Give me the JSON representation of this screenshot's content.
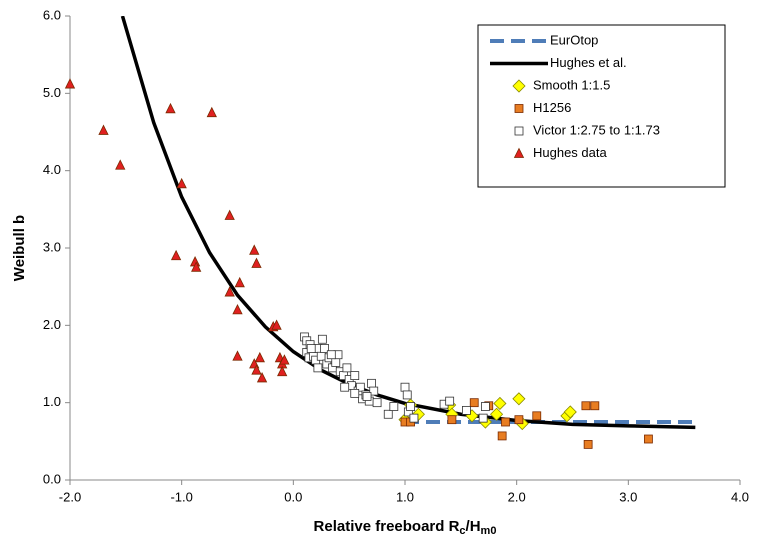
{
  "chart_data": {
    "type": "scatter",
    "x_label_parts": [
      "Relative freeboard R",
      "c",
      "/H",
      "m0"
    ],
    "y_label": "Weibull b",
    "xlim": [
      -2,
      4
    ],
    "ylim": [
      0,
      6
    ],
    "xticks": [
      {
        "value": -2,
        "label": "-2.0"
      },
      {
        "value": -1,
        "label": "-1.0"
      },
      {
        "value": 0,
        "label": "0.0"
      },
      {
        "value": 1,
        "label": "1.0"
      },
      {
        "value": 2,
        "label": "2.0"
      },
      {
        "value": 3,
        "label": "3.0"
      },
      {
        "value": 4,
        "label": "4.0"
      }
    ],
    "yticks": [
      {
        "value": 0,
        "label": "0.0"
      },
      {
        "value": 1,
        "label": "1.0"
      },
      {
        "value": 2,
        "label": "2.0"
      },
      {
        "value": 3,
        "label": "3.0"
      },
      {
        "value": 4,
        "label": "4.0"
      },
      {
        "value": 5,
        "label": "5.0"
      },
      {
        "value": 6,
        "label": "6.0"
      }
    ],
    "grid": false,
    "legend": "upper right",
    "series": [
      {
        "name": "EurOtop",
        "kind": "line",
        "dashed": true,
        "color": "#4f7db8",
        "x": [
          1.0,
          3.6
        ],
        "values": [
          0.75,
          0.75
        ]
      },
      {
        "name": "Hughes et al.",
        "kind": "line",
        "dashed": false,
        "color": "#000000",
        "x": [
          -1.53,
          -1.25,
          -1.0,
          -0.75,
          -0.5,
          -0.25,
          0,
          0.25,
          0.5,
          0.75,
          1.0,
          1.5,
          2.0,
          2.5,
          3.0,
          3.6
        ],
        "values": [
          6.0,
          4.62,
          3.66,
          2.94,
          2.39,
          1.98,
          1.66,
          1.42,
          1.24,
          1.1,
          0.99,
          0.85,
          0.77,
          0.72,
          0.7,
          0.68
        ]
      },
      {
        "name": "Smooth 1:1.5",
        "kind": "marker",
        "marker": "diamond",
        "color": "#ffff00",
        "x": [
          1.0,
          1.05,
          1.12,
          1.4,
          1.42,
          1.6,
          1.72,
          1.82,
          1.85,
          2.02,
          2.05,
          2.45,
          2.48
        ],
        "values": [
          0.78,
          0.97,
          0.85,
          0.97,
          0.85,
          0.83,
          0.75,
          0.85,
          0.99,
          1.05,
          0.73,
          0.83,
          0.88
        ]
      },
      {
        "name": "H1256",
        "kind": "marker",
        "marker": "square",
        "color": "#e87d22",
        "x": [
          1.0,
          1.05,
          1.42,
          1.62,
          1.75,
          1.87,
          1.9,
          2.02,
          2.18,
          2.62,
          2.64,
          2.7,
          3.18
        ],
        "values": [
          0.75,
          0.75,
          0.78,
          1.0,
          0.96,
          0.57,
          0.75,
          0.78,
          0.83,
          0.96,
          0.46,
          0.96,
          0.53
        ]
      },
      {
        "name": "Victor 1:2.75  to 1:1.73",
        "kind": "marker",
        "marker": "square",
        "color": "#ffffff",
        "x": [
          0.1,
          0.12,
          0.12,
          0.14,
          0.15,
          0.18,
          0.2,
          0.22,
          0.22,
          0.25,
          0.26,
          0.28,
          0.3,
          0.32,
          0.35,
          0.38,
          0.4,
          0.42,
          0.45,
          0.48,
          0.5,
          0.52,
          0.55,
          0.58,
          0.6,
          0.62,
          0.65,
          0.68,
          0.7,
          0.72,
          0.75,
          0.85,
          0.9,
          1.0,
          1.02,
          1.03,
          1.05,
          1.08,
          1.35,
          1.4,
          1.55,
          1.7,
          1.72,
          0.16,
          0.34,
          0.46,
          0.55,
          0.66
        ],
        "values": [
          1.85,
          1.8,
          1.65,
          1.58,
          1.75,
          1.6,
          1.55,
          1.7,
          1.45,
          1.6,
          1.82,
          1.7,
          1.5,
          1.58,
          1.45,
          1.52,
          1.62,
          1.4,
          1.35,
          1.45,
          1.3,
          1.22,
          1.35,
          1.15,
          1.2,
          1.05,
          1.1,
          1.02,
          1.25,
          1.15,
          1.0,
          0.85,
          0.95,
          1.2,
          1.1,
          0.88,
          0.95,
          0.8,
          0.98,
          1.02,
          0.9,
          0.8,
          0.95,
          1.7,
          1.62,
          1.2,
          1.12,
          1.08
        ]
      },
      {
        "name": "Hughes data",
        "kind": "marker",
        "marker": "triangle",
        "color": "#e02020",
        "x": [
          -2.0,
          -1.7,
          -1.55,
          -1.1,
          -1.0,
          -1.05,
          -0.88,
          -0.87,
          -0.73,
          -0.57,
          -0.57,
          -0.48,
          -0.5,
          -0.5,
          -0.35,
          -0.33,
          -0.35,
          -0.33,
          -0.3,
          -0.28,
          -0.18,
          -0.15,
          -0.12,
          -0.1,
          -0.1,
          -0.08
        ],
        "values": [
          5.12,
          4.52,
          4.07,
          4.8,
          3.83,
          2.9,
          2.82,
          2.75,
          4.75,
          3.42,
          2.43,
          2.55,
          2.2,
          1.6,
          2.97,
          2.8,
          1.5,
          1.42,
          1.58,
          1.32,
          1.98,
          2.0,
          1.58,
          1.5,
          1.4,
          1.55
        ]
      }
    ]
  }
}
